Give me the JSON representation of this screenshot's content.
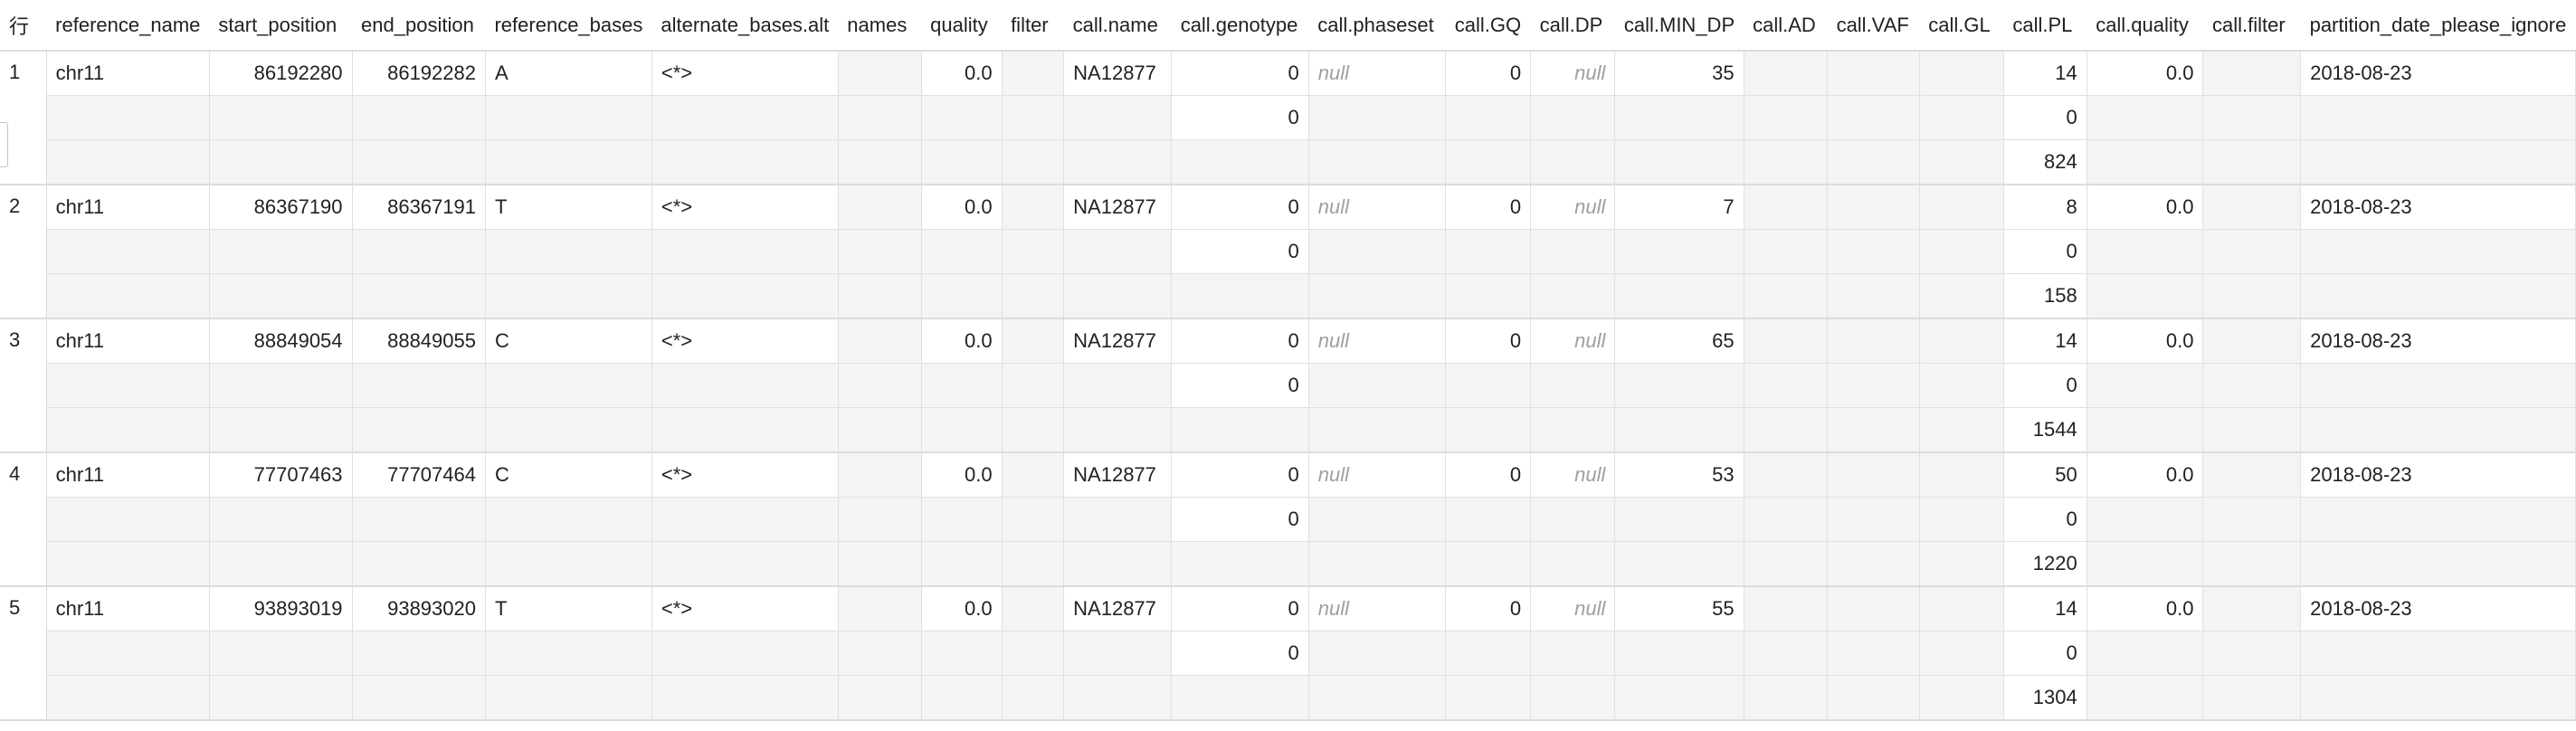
{
  "columns": [
    "行",
    "reference_name",
    "start_position",
    "end_position",
    "reference_bases",
    "alternate_bases.alt",
    "names",
    "quality",
    "filter",
    "call.name",
    "call.genotype",
    "call.phaseset",
    "call.GQ",
    "call.DP",
    "call.MIN_DP",
    "call.AD",
    "call.VAF",
    "call.GL",
    "call.PL",
    "call.quality",
    "call.filter",
    "partition_date_please_ignore"
  ],
  "rows": [
    {
      "num": "1",
      "ref": "chr11",
      "start": "86192280",
      "end": "86192282",
      "bases": "A",
      "alt": "<*>",
      "quality": "0.0",
      "call_name": "NA12877",
      "genotype": [
        "0",
        "0"
      ],
      "phaseset": "null",
      "gq": "0",
      "dp": "null",
      "min_dp": "35",
      "pl": [
        "14",
        "0",
        "824"
      ],
      "call_quality": "0.0",
      "date": "2018-08-23"
    },
    {
      "num": "2",
      "ref": "chr11",
      "start": "86367190",
      "end": "86367191",
      "bases": "T",
      "alt": "<*>",
      "quality": "0.0",
      "call_name": "NA12877",
      "genotype": [
        "0",
        "0"
      ],
      "phaseset": "null",
      "gq": "0",
      "dp": "null",
      "min_dp": "7",
      "pl": [
        "8",
        "0",
        "158"
      ],
      "call_quality": "0.0",
      "date": "2018-08-23"
    },
    {
      "num": "3",
      "ref": "chr11",
      "start": "88849054",
      "end": "88849055",
      "bases": "C",
      "alt": "<*>",
      "quality": "0.0",
      "call_name": "NA12877",
      "genotype": [
        "0",
        "0"
      ],
      "phaseset": "null",
      "gq": "0",
      "dp": "null",
      "min_dp": "65",
      "pl": [
        "14",
        "0",
        "1544"
      ],
      "call_quality": "0.0",
      "date": "2018-08-23"
    },
    {
      "num": "4",
      "ref": "chr11",
      "start": "77707463",
      "end": "77707464",
      "bases": "C",
      "alt": "<*>",
      "quality": "0.0",
      "call_name": "NA12877",
      "genotype": [
        "0",
        "0"
      ],
      "phaseset": "null",
      "gq": "0",
      "dp": "null",
      "min_dp": "53",
      "pl": [
        "50",
        "0",
        "1220"
      ],
      "call_quality": "0.0",
      "date": "2018-08-23"
    },
    {
      "num": "5",
      "ref": "chr11",
      "start": "93893019",
      "end": "93893020",
      "bases": "T",
      "alt": "<*>",
      "quality": "0.0",
      "call_name": "NA12877",
      "genotype": [
        "0",
        "0"
      ],
      "phaseset": "null",
      "gq": "0",
      "dp": "null",
      "min_dp": "55",
      "pl": [
        "14",
        "0",
        "1304"
      ],
      "call_quality": "0.0",
      "date": "2018-08-23"
    }
  ]
}
